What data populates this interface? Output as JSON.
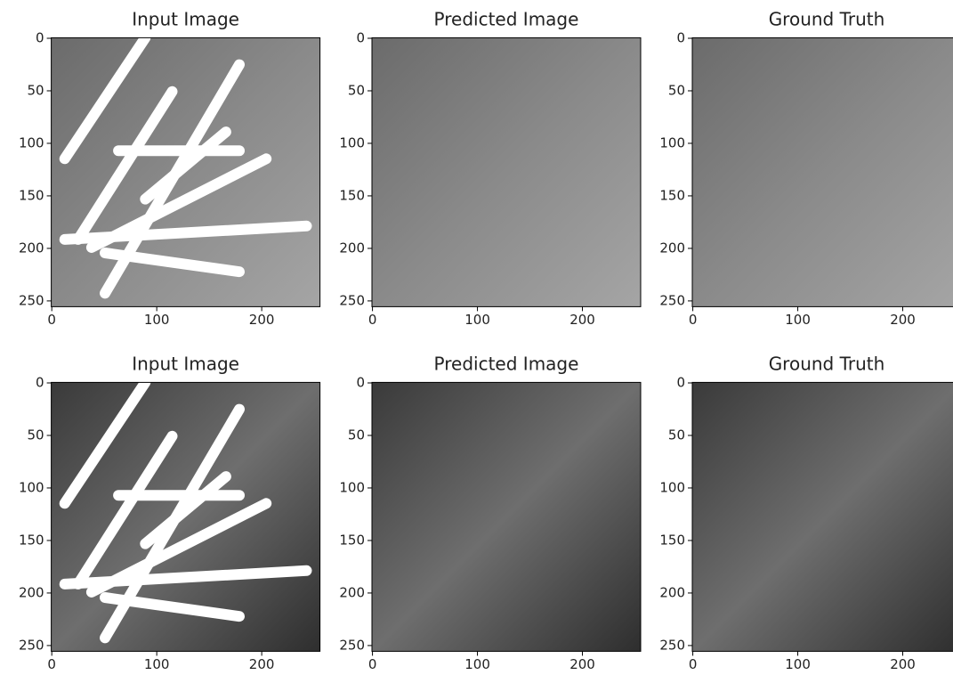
{
  "panels": [
    {
      "title": "Input Image",
      "xlim": [
        -0.5,
        255.5
      ],
      "ylim": [
        255.5,
        -0.5
      ],
      "xticks": [
        0,
        100,
        200
      ],
      "yticks": [
        0,
        50,
        100,
        150,
        200,
        250
      ]
    },
    {
      "title": "Predicted Image",
      "xlim": [
        -0.5,
        255.5
      ],
      "ylim": [
        255.5,
        -0.5
      ],
      "xticks": [
        0,
        100,
        200
      ],
      "yticks": [
        0,
        50,
        100,
        150,
        200,
        250
      ]
    },
    {
      "title": "Ground Truth",
      "xlim": [
        -0.5,
        255.5
      ],
      "ylim": [
        255.5,
        -0.5
      ],
      "xticks": [
        0,
        100,
        200
      ],
      "yticks": [
        0,
        50,
        100,
        150,
        200,
        250
      ]
    },
    {
      "title": "Input Image",
      "xlim": [
        -0.5,
        255.5
      ],
      "ylim": [
        255.5,
        -0.5
      ],
      "xticks": [
        0,
        100,
        200
      ],
      "yticks": [
        0,
        50,
        100,
        150,
        200,
        250
      ]
    },
    {
      "title": "Predicted Image",
      "xlim": [
        -0.5,
        255.5
      ],
      "ylim": [
        255.5,
        -0.5
      ],
      "xticks": [
        0,
        100,
        200
      ],
      "yticks": [
        0,
        50,
        100,
        150,
        200,
        250
      ]
    },
    {
      "title": "Ground Truth",
      "xlim": [
        -0.5,
        255.5
      ],
      "ylim": [
        255.5,
        -0.5
      ],
      "xticks": [
        0,
        100,
        200
      ],
      "yticks": [
        0,
        50,
        100,
        150,
        200,
        250
      ]
    }
  ]
}
